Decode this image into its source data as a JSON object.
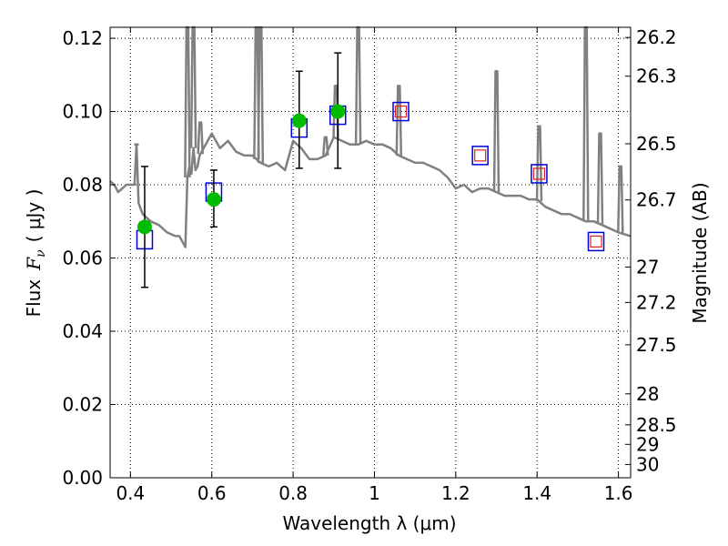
{
  "chart_data": {
    "type": "scatter",
    "xlabel": "Wavelength  λ (μm)",
    "ylabel": "Flux  Fν  ( μJy )",
    "ylabel_parts": {
      "prefix": "Flux",
      "symbol": "F",
      "subscript": "ν",
      "unit": "( μJy )"
    },
    "ylabel_right": "Magnitude (AB)",
    "xlim": [
      0.35,
      1.63
    ],
    "ylim": [
      0.0,
      0.123
    ],
    "grid": true,
    "x_ticks": [
      0.4,
      0.6,
      0.8,
      1.0,
      1.2,
      1.4,
      1.6
    ],
    "x_tick_labels": [
      "0.4",
      "0.6",
      "0.8",
      "1",
      "1.2",
      "1.4",
      "1.6"
    ],
    "y_ticks": [
      0.0,
      0.02,
      0.04,
      0.06,
      0.08,
      0.1,
      0.12
    ],
    "y_tick_labels": [
      "0.00",
      "0.02",
      "0.04",
      "0.06",
      "0.08",
      "0.10",
      "0.12"
    ],
    "right_ticks_mag": [
      26.2,
      26.3,
      26.5,
      26.7,
      27,
      27.2,
      27.5,
      28,
      28.5,
      29,
      30
    ],
    "right_tick_labels": [
      "26.2",
      "26.3",
      "26.5",
      "26.7",
      "27",
      "27.2",
      "27.5",
      "28",
      "28.5",
      "29",
      "30"
    ],
    "colors": {
      "template": "#808080",
      "observed": "#00bb00",
      "model_outer": "#0000dd",
      "model_inner": "#dd2222",
      "errorbar": "#000000"
    },
    "series": [
      {
        "kind": "template_spectrum",
        "x": [
          0.35,
          0.36,
          0.37,
          0.38,
          0.39,
          0.4,
          0.41,
          0.415,
          0.42,
          0.43,
          0.45,
          0.47,
          0.49,
          0.51,
          0.52,
          0.53,
          0.535,
          0.54,
          0.545,
          0.55,
          0.555,
          0.56,
          0.565,
          0.57,
          0.58,
          0.59,
          0.6,
          0.62,
          0.64,
          0.66,
          0.68,
          0.7,
          0.72,
          0.74,
          0.76,
          0.78,
          0.8,
          0.82,
          0.84,
          0.86,
          0.88,
          0.9,
          0.92,
          0.94,
          0.96,
          0.98,
          1.0,
          1.02,
          1.04,
          1.06,
          1.08,
          1.1,
          1.12,
          1.14,
          1.16,
          1.18,
          1.2,
          1.22,
          1.24,
          1.26,
          1.28,
          1.3,
          1.32,
          1.34,
          1.36,
          1.38,
          1.4,
          1.42,
          1.44,
          1.46,
          1.48,
          1.5,
          1.52,
          1.54,
          1.56,
          1.58,
          1.6,
          1.63
        ],
        "y": [
          0.081,
          0.08,
          0.078,
          0.079,
          0.08,
          0.08,
          0.08,
          0.091,
          0.075,
          0.072,
          0.07,
          0.069,
          0.067,
          0.066,
          0.066,
          0.064,
          0.063,
          0.082,
          0.085,
          0.083,
          0.09,
          0.084,
          0.085,
          0.088,
          0.09,
          0.092,
          0.094,
          0.09,
          0.092,
          0.089,
          0.088,
          0.088,
          0.086,
          0.085,
          0.086,
          0.084,
          0.092,
          0.09,
          0.087,
          0.087,
          0.088,
          0.093,
          0.092,
          0.091,
          0.091,
          0.092,
          0.091,
          0.091,
          0.09,
          0.088,
          0.087,
          0.086,
          0.086,
          0.085,
          0.084,
          0.082,
          0.079,
          0.08,
          0.078,
          0.079,
          0.079,
          0.078,
          0.077,
          0.077,
          0.077,
          0.076,
          0.076,
          0.074,
          0.073,
          0.072,
          0.072,
          0.071,
          0.07,
          0.07,
          0.069,
          0.068,
          0.067,
          0.066
        ]
      },
      {
        "kind": "template_spikes",
        "x": [
          0.415,
          0.54,
          0.555,
          0.572,
          0.71,
          0.72,
          0.88,
          0.905,
          0.96,
          1.06,
          1.3,
          1.405,
          1.52,
          1.555,
          1.605
        ],
        "y": [
          0.091,
          0.123,
          0.123,
          0.097,
          0.123,
          0.123,
          0.093,
          0.107,
          0.123,
          0.107,
          0.111,
          0.096,
          0.123,
          0.094,
          0.085
        ]
      },
      {
        "name": "",
        "kind": "observed",
        "x": [
          0.435,
          0.605,
          0.815,
          0.91
        ],
        "y": [
          0.0685,
          0.076,
          0.0975,
          0.1
        ],
        "yerr_low": [
          0.052,
          0.0685,
          0.0845,
          0.0845
        ],
        "yerr_high": [
          0.085,
          0.084,
          0.111,
          0.116
        ]
      },
      {
        "name": "",
        "kind": "model",
        "x": [
          0.435,
          0.605,
          0.815,
          0.91,
          1.065,
          1.26,
          1.405,
          1.545
        ],
        "y": [
          0.065,
          0.078,
          0.0955,
          0.099,
          0.1,
          0.088,
          0.083,
          0.0645
        ],
        "inner": [
          false,
          false,
          false,
          false,
          true,
          true,
          true,
          true
        ]
      }
    ]
  }
}
